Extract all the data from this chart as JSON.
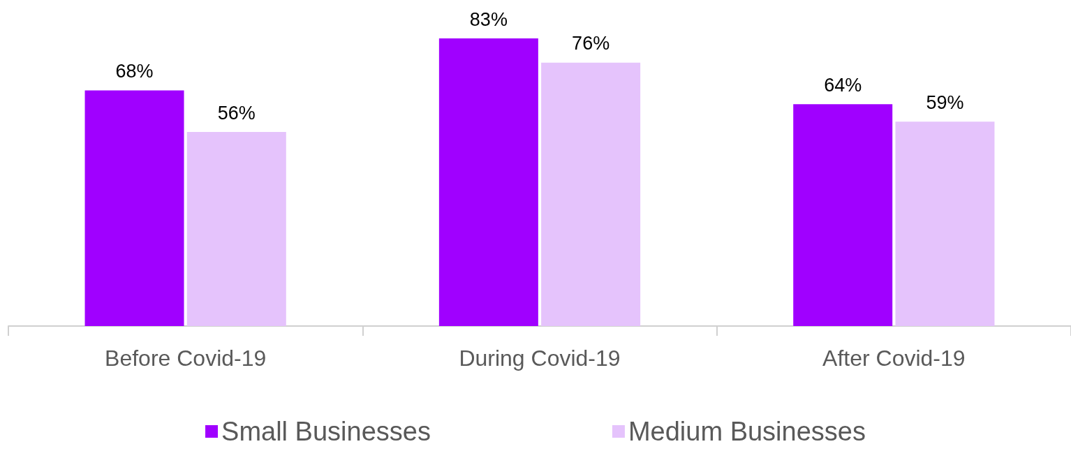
{
  "chart_data": {
    "type": "bar",
    "categories": [
      "Before Covid-19",
      "During Covid-19",
      "After Covid-19"
    ],
    "series": [
      {
        "name": "Small Businesses",
        "color": "#a000ff",
        "values": [
          68,
          83,
          64
        ],
        "value_labels": [
          "68%",
          "83%",
          "64%"
        ]
      },
      {
        "name": "Medium Businesses",
        "color": "#e5c3fc",
        "values": [
          56,
          76,
          59
        ],
        "value_labels": [
          "56%",
          "76%",
          "59%"
        ]
      }
    ],
    "legend": "bottom"
  }
}
